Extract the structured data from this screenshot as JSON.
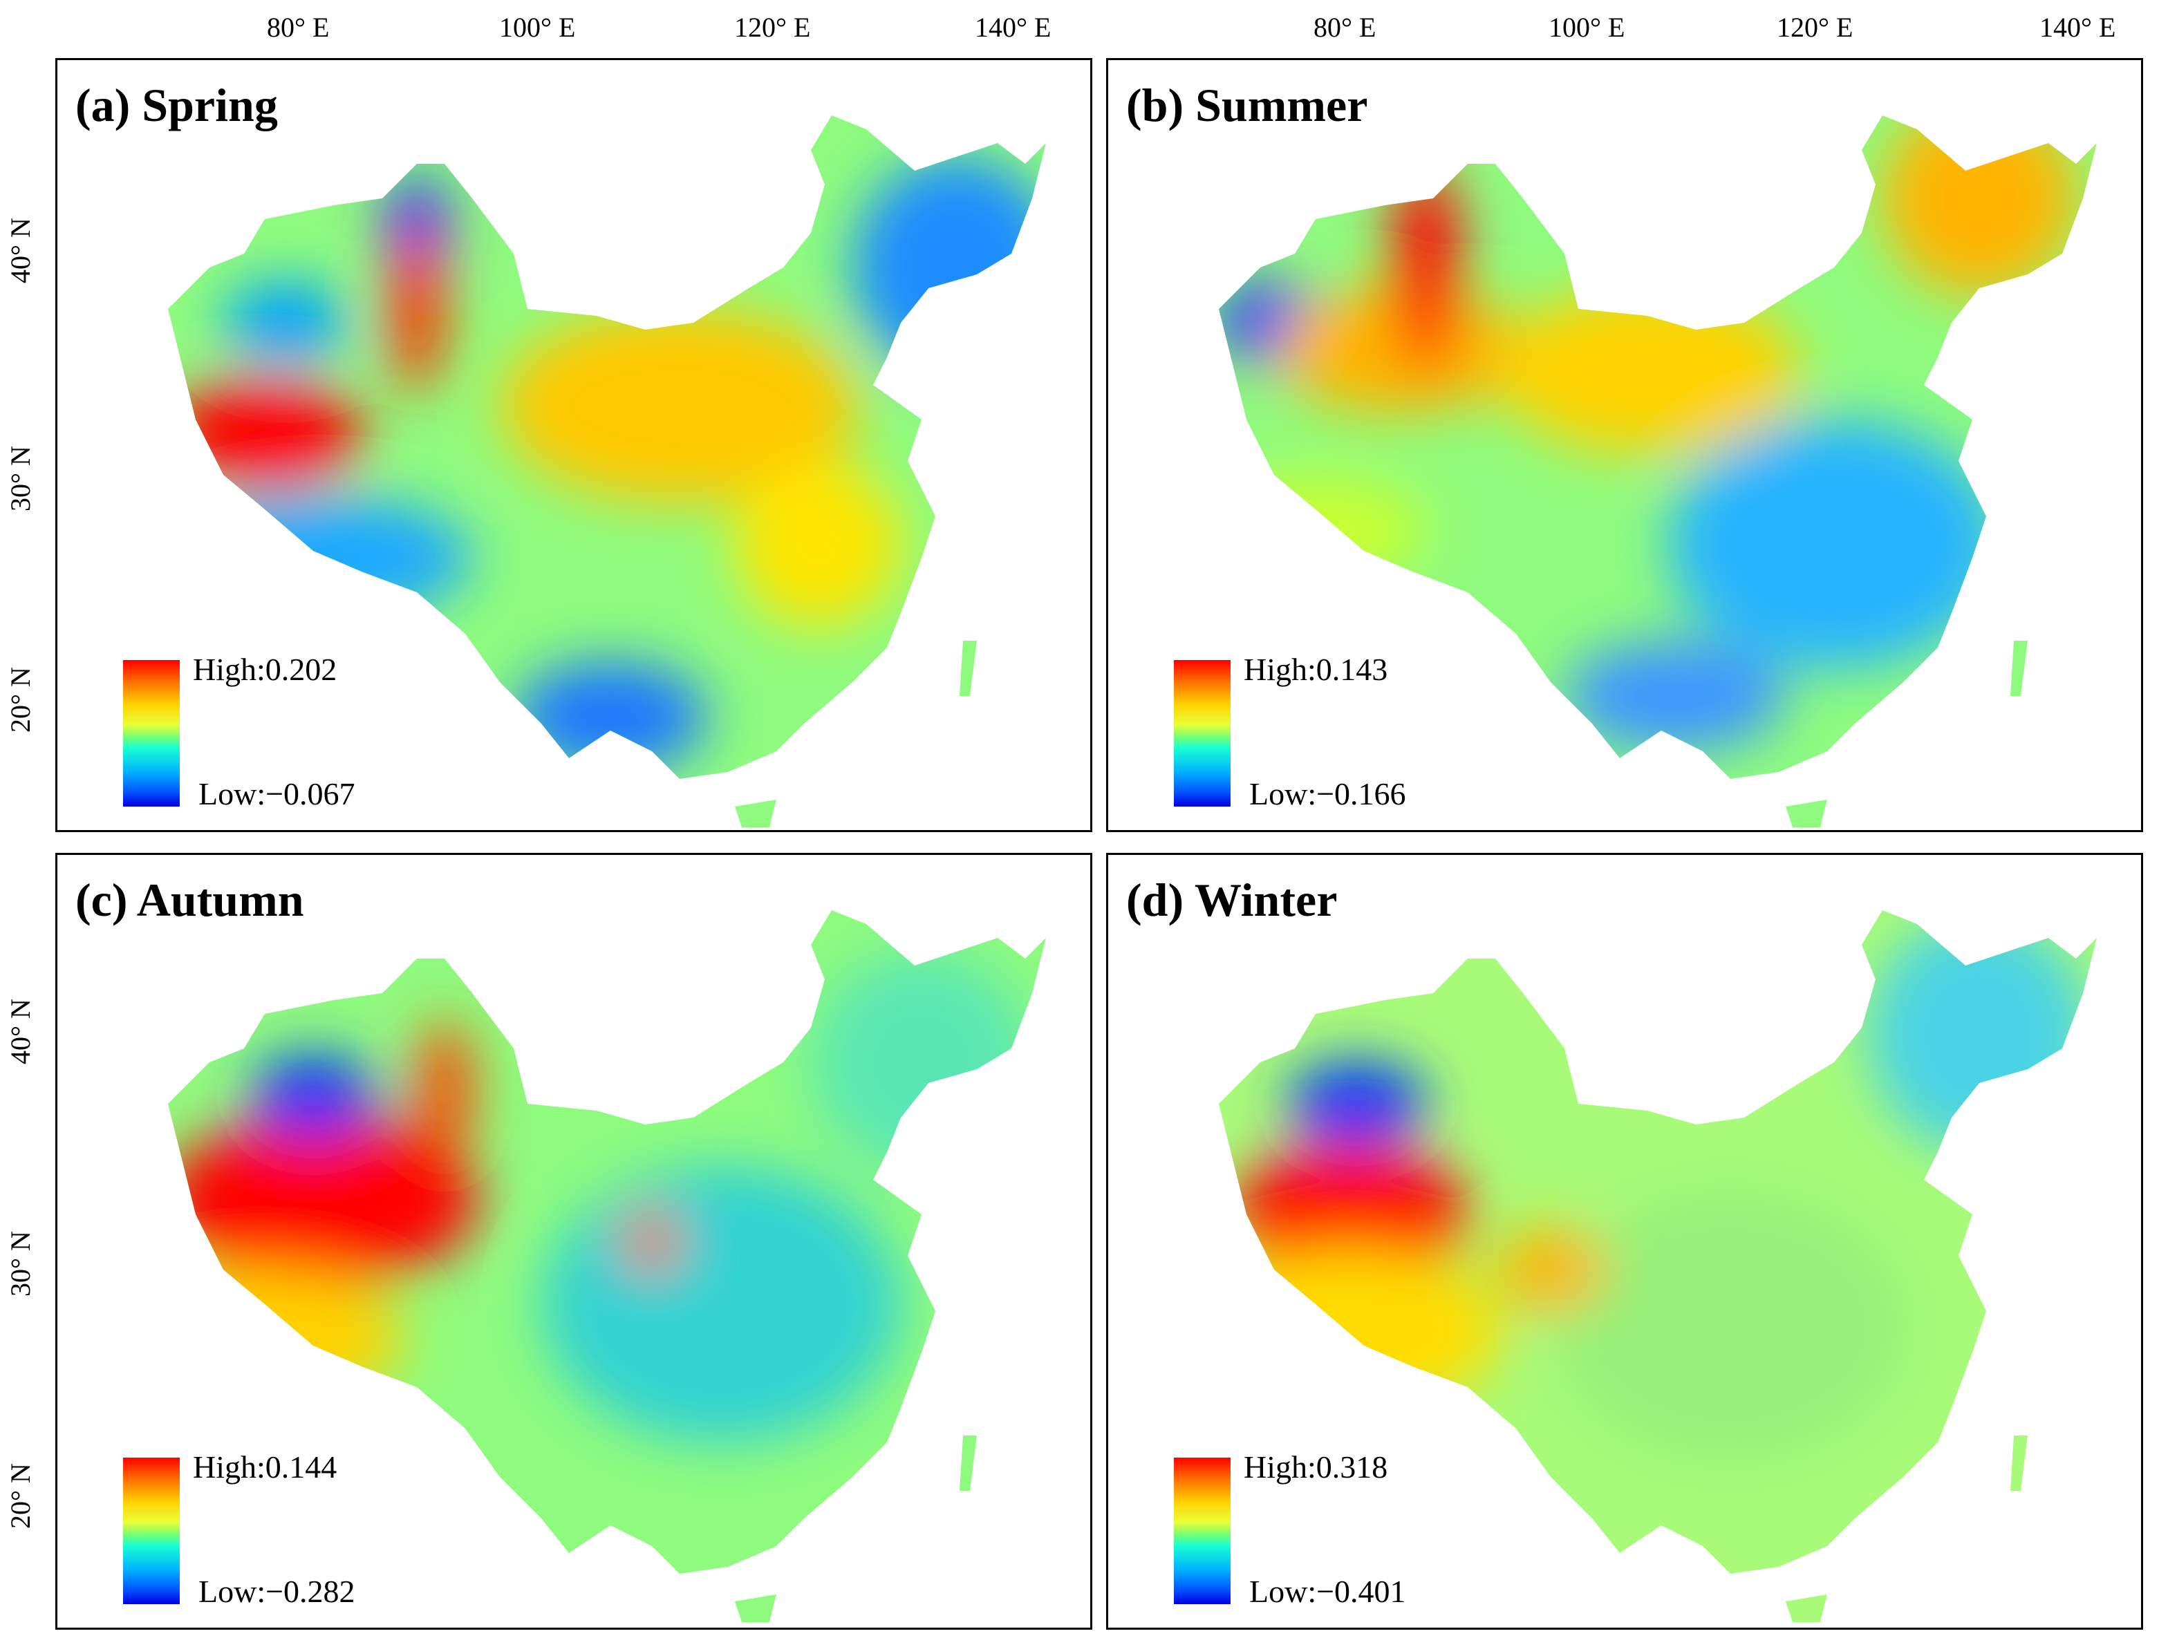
{
  "lon_ticks": [
    "80° E",
    "100° E",
    "120° E",
    "140° E"
  ],
  "lat_ticks": [
    "40° N",
    "30° N",
    "20° N"
  ],
  "panels": [
    {
      "id": "a",
      "title": "(a) Spring",
      "legend_high": "High:0.202",
      "legend_low": "Low:−0.067"
    },
    {
      "id": "b",
      "title": "(b) Summer",
      "legend_high": "High:0.143",
      "legend_low": "Low:−0.166"
    },
    {
      "id": "c",
      "title": "(c) Autumn",
      "legend_high": "High:0.144",
      "legend_low": "Low:−0.282"
    },
    {
      "id": "d",
      "title": "(d) Winter",
      "legend_high": "High:0.318",
      "legend_low": "Low:−0.401"
    }
  ],
  "colors": {
    "high": "#ff0000",
    "mid_high": "#ffd700",
    "mid": "#66ff66",
    "mid_low": "#00d7ff",
    "low": "#0000e0"
  }
}
